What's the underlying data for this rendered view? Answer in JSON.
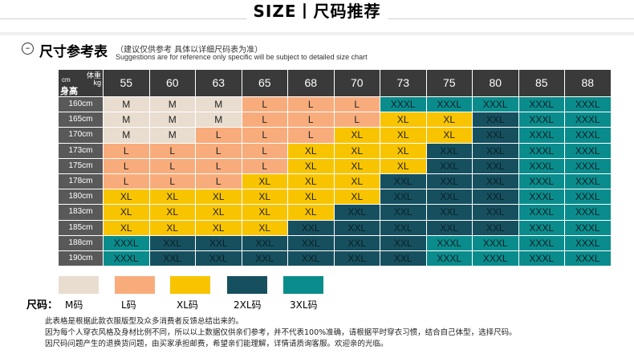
{
  "header": {
    "title": "SIZE丨尺码推荐"
  },
  "subheader": {
    "icon": "minus-circle-icon",
    "icon_glyph": "–",
    "title": "尺寸参考表",
    "note_cn": "（建议仅供参考  具体以详细尺码表为准）",
    "note_en": "Suggestions are for reference only specific will be subject to detailed size chart"
  },
  "table": {
    "corner": {
      "cm": "cm",
      "weight": "体重",
      "kg": "kg",
      "height": "身高"
    },
    "weights": [
      "55",
      "60",
      "63",
      "65",
      "68",
      "70",
      "73",
      "75",
      "80",
      "85",
      "88"
    ],
    "heights": [
      "160cm",
      "165cm",
      "170cm",
      "173cm",
      "175cm",
      "178cm",
      "180cm",
      "183cm",
      "185cm",
      "188cm",
      "190cm"
    ],
    "rows": [
      [
        "M",
        "M",
        "M",
        "L",
        "L",
        "L",
        "XXXL",
        "XXXL",
        "XXXL",
        "XXXL",
        "XXXL"
      ],
      [
        "M",
        "M",
        "M",
        "L",
        "L",
        "L",
        "XL",
        "XL",
        "XXL",
        "XXXL",
        "XXXL"
      ],
      [
        "M",
        "M",
        "L",
        "L",
        "L",
        "XL",
        "XL",
        "XL",
        "XXL",
        "XXXL",
        "XXXL"
      ],
      [
        "L",
        "L",
        "L",
        "L",
        "XL",
        "XL",
        "XL",
        "XXL",
        "XXL",
        "XXXL",
        "XXXL"
      ],
      [
        "L",
        "L",
        "L",
        "L",
        "XL",
        "XL",
        "XL",
        "XXL",
        "XXL",
        "XXXL",
        "XXXL"
      ],
      [
        "L",
        "L",
        "L",
        "XL",
        "XL",
        "XL",
        "XXL",
        "XXL",
        "XXL",
        "XXXL",
        "XXXL"
      ],
      [
        "XL",
        "XL",
        "XL",
        "XL",
        "XL",
        "XL",
        "XXL",
        "XXL",
        "XXL",
        "XXXL",
        "XXXL"
      ],
      [
        "XL",
        "XL",
        "XL",
        "XL",
        "XL",
        "XXL",
        "XXL",
        "XXL",
        "XXL",
        "XXXL",
        "XXXL"
      ],
      [
        "XL",
        "XL",
        "XL",
        "XL",
        "XXL",
        "XXL",
        "XXL",
        "XXL",
        "XXL",
        "XXXL",
        "XXXL"
      ],
      [
        "XXXL",
        "XXL",
        "XXL",
        "XXL",
        "XXL",
        "XXL",
        "XXL",
        "XXXL",
        "XXXL",
        "XXXL",
        "XXXL"
      ],
      [
        "XXXL",
        "XXL",
        "XXL",
        "XXL",
        "XXL",
        "XXL",
        "XXL",
        "XXXL",
        "XXXL",
        "XXXL",
        "XXXL"
      ]
    ]
  },
  "colors": {
    "M": "#e9ddd0",
    "L": "#f8ac7c",
    "XL": "#f8c400",
    "XXL": "#16505f",
    "XXXL": "#0a8c8c",
    "header_bg": "#3a3a3a",
    "row_header_bg": "#595959"
  },
  "legend": {
    "label": "尺码：",
    "items": [
      {
        "key": "M",
        "label": "M码"
      },
      {
        "key": "L",
        "label": "L码"
      },
      {
        "key": "XL",
        "label": "XL码"
      },
      {
        "key": "XXL",
        "label": "2XL码"
      },
      {
        "key": "XXXL",
        "label": "3XL码"
      }
    ]
  },
  "footnotes": [
    "此表格是根据此款衣服版型及众多消费者反馈总结出来的。",
    "因为每个人穿衣风格及身材比例不同，所以以上数据仅供亲们参考，并不代表100%准确，请根据平时穿衣习惯，结合自己体型，选择尺码。",
    "因尺码问题产生的退换货问题，由买家承担邮费，希望亲们能理解，详情请质询客服。欢迎亲的光临。"
  ]
}
